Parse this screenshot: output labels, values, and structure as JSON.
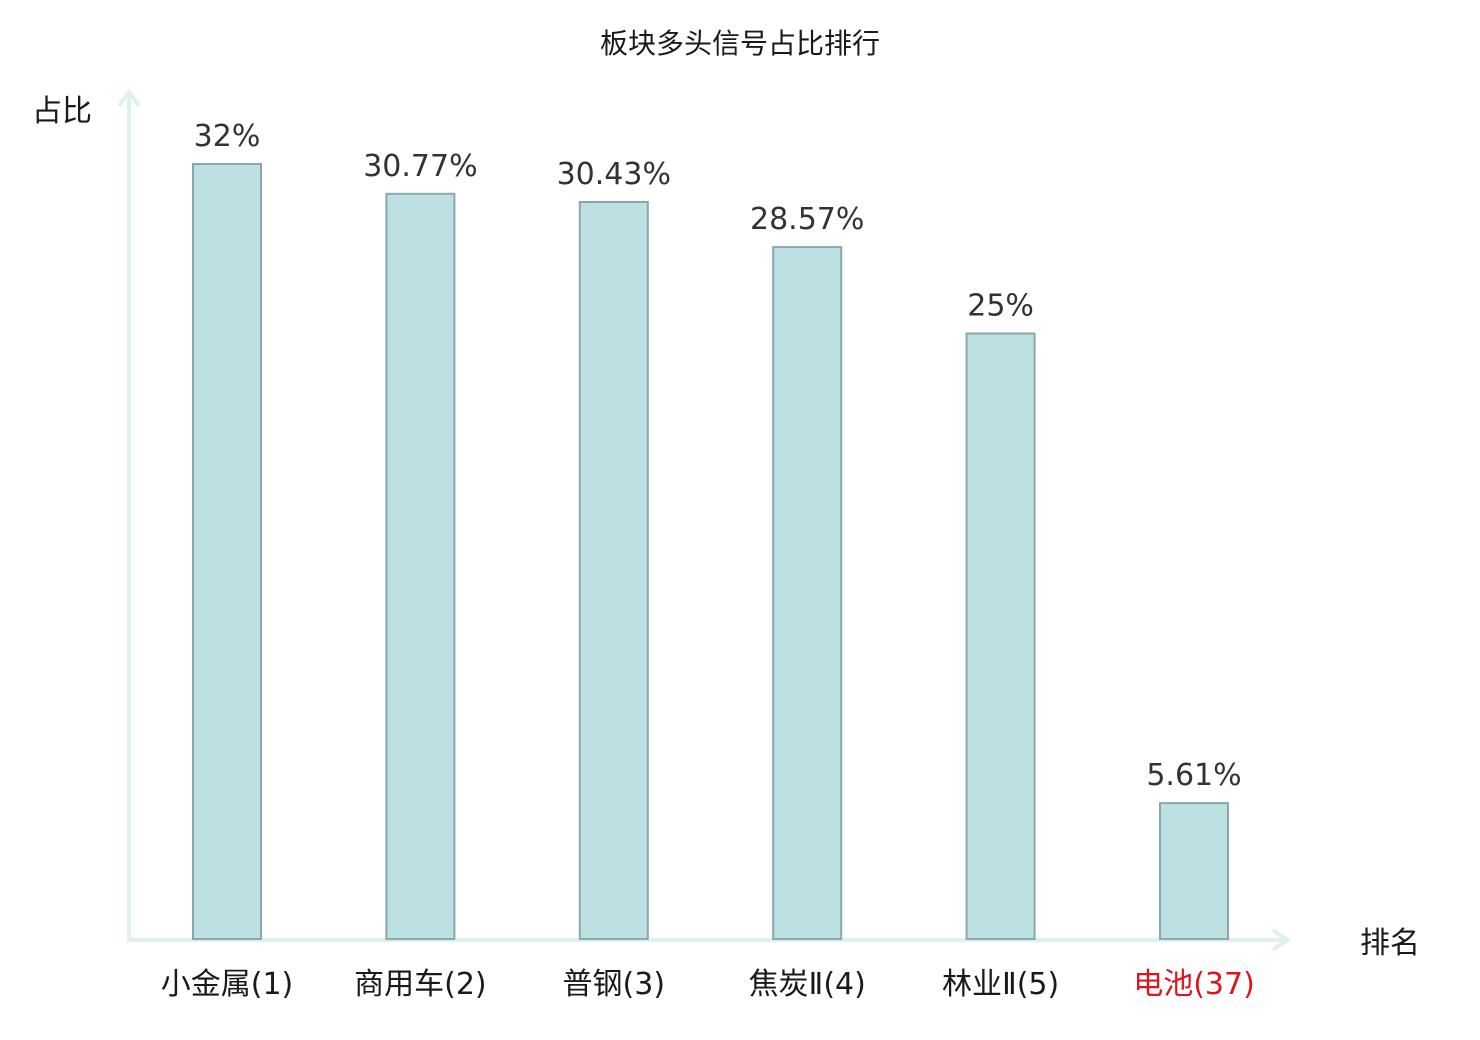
{
  "chart_data": {
    "type": "bar",
    "title": "板块多头信号占比排行",
    "ylabel": "占比",
    "xlabel": "排名",
    "categories": [
      "小金属(1)",
      "商用车(2)",
      "普钢(3)",
      "焦炭Ⅱ(4)",
      "林业Ⅱ(5)",
      "电池(37)"
    ],
    "values": [
      32,
      30.77,
      30.43,
      28.57,
      25,
      5.61
    ],
    "value_labels": [
      "32%",
      "30.77%",
      "30.43%",
      "28.57%",
      "25%",
      "5.61%"
    ],
    "highlight_index": 5,
    "ylim": [
      0,
      36
    ],
    "grid": false,
    "legend": "none",
    "colors": {
      "bar_fill": "#bde0e3",
      "bar_stroke": "#8aa8ab",
      "axis": "#dff1ef",
      "highlight_text": "#e0141e",
      "text": "#1a1a1a"
    }
  }
}
